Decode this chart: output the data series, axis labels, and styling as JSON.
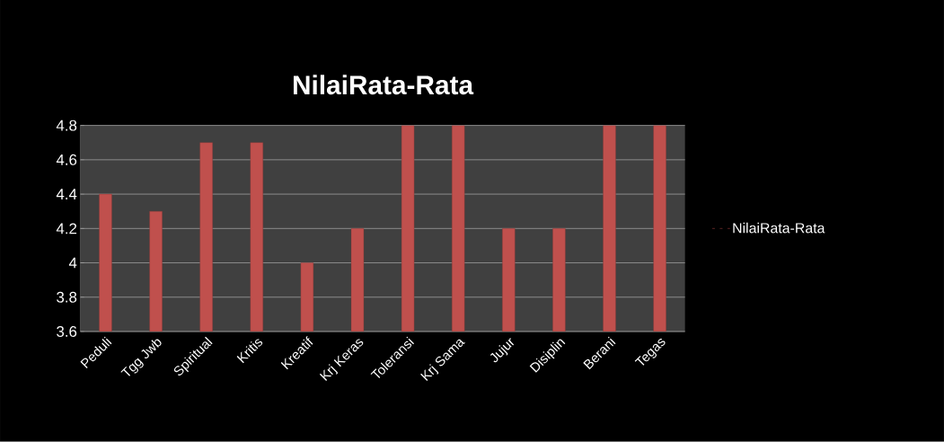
{
  "chart_data": {
    "type": "bar",
    "title": "NilaiRata-Rata",
    "categories": [
      "Peduli",
      "Tgg Jwb",
      "Spiritual",
      "Kritis",
      "Kreatif",
      "Krj Keras",
      "Toleransi",
      "Krj Sama",
      "Jujur",
      "Disiplin",
      "Berani",
      "Tegas"
    ],
    "series": [
      {
        "name": "NilaiRata-Rata",
        "color": "#c0504d",
        "values": [
          4.4,
          4.3,
          4.7,
          4.7,
          4.0,
          4.2,
          4.8,
          4.8,
          4.2,
          4.2,
          4.8,
          4.8
        ]
      }
    ],
    "ylim": [
      3.6,
      4.8
    ],
    "yticks": [
      3.6,
      3.8,
      4,
      4.2,
      4.4,
      4.6,
      4.8
    ],
    "grid": "y",
    "legend": "right"
  }
}
